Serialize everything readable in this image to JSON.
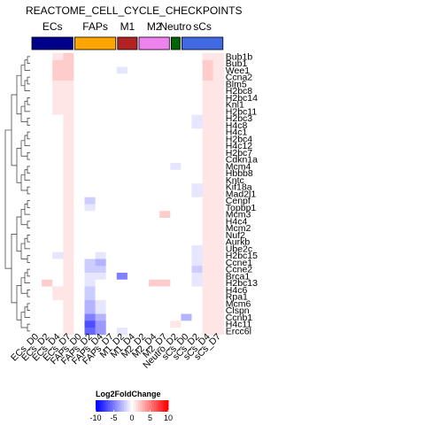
{
  "chart_data": {
    "type": "heatmap",
    "title": "REACTOME_CELL_CYCLE_CHECKPOINTS",
    "columns": [
      "ECs_D0",
      "ECs_D2",
      "ECs_D4",
      "ECs_D7",
      "FAPs_D0",
      "FAPs_D2",
      "FAPs_D4",
      "FAPs_D7",
      "M1_D2",
      "M1_D4",
      "M2_D2",
      "M2_D4",
      "M2_D7",
      "Neutro_D2",
      "sCs_D0",
      "sCs_D2",
      "sCs_D4",
      "sCs_D7"
    ],
    "column_groups": [
      {
        "name": "ECs",
        "color": "#00008B",
        "count": 4
      },
      {
        "name": "FAPs",
        "color": "#FFA500",
        "count": 4
      },
      {
        "name": "M1",
        "color": "#B22222",
        "count": 2
      },
      {
        "name": "M2",
        "color": "#EE82EE",
        "count": 3
      },
      {
        "name": "Neutro",
        "color": "#006400",
        "count": 1
      },
      {
        "name": "sCs",
        "color": "#4169E1",
        "count": 4
      }
    ],
    "rows": [
      "Bub1b",
      "Bub1",
      "Wee1",
      "Ccna2",
      "Blm5",
      "H2bc8",
      "H2bc14",
      "Knl1",
      "H2bc11",
      "H2bc3",
      "H4c8",
      "H4c1",
      "H2bc4",
      "H4c12",
      "H2bc7",
      "Cdkn1a",
      "Mcm4",
      "Hbbb8",
      "Kntc",
      "Kif18a",
      "Mad2l1",
      "Cenpf",
      "Topbp1",
      "Mcm3",
      "H4c4",
      "Mcm2",
      "Nuf2",
      "Aurkb",
      "Ube2c",
      "H2bc15",
      "Ccne1",
      "Ccne2",
      "Brca1",
      "H2bc13",
      "H4c6",
      "Rpa1",
      "Mcm6",
      "Clspn",
      "Ccnb1",
      "H4c11",
      "Ercc6l"
    ],
    "values": [
      [
        0,
        0,
        1,
        2,
        0,
        0,
        0,
        0,
        0,
        0,
        0,
        0,
        0,
        0,
        0,
        0,
        1,
        1
      ],
      [
        0,
        0,
        2,
        2,
        0,
        0,
        0,
        0,
        0,
        0,
        0,
        0,
        0,
        0,
        0,
        0,
        2,
        1
      ],
      [
        0,
        0,
        2,
        2,
        0,
        0,
        0,
        0,
        -1,
        0,
        0,
        0,
        0,
        0,
        0,
        0,
        2,
        1
      ],
      [
        0,
        0,
        2,
        2,
        0,
        0,
        0,
        0,
        0,
        0,
        0,
        0,
        0,
        0,
        0,
        0,
        2,
        1
      ],
      [
        0,
        0,
        1,
        1,
        0,
        0,
        0,
        0,
        0,
        0,
        0,
        0,
        0,
        0,
        0,
        0,
        1,
        1
      ],
      [
        0,
        0,
        1,
        1,
        0,
        0,
        0,
        0,
        0,
        0,
        0,
        0,
        0,
        0,
        0,
        0,
        1,
        1
      ],
      [
        0,
        0,
        1,
        1,
        0,
        0,
        0,
        0,
        0,
        0,
        0,
        0,
        0,
        0,
        0,
        0,
        1,
        1
      ],
      [
        0,
        0,
        1,
        1,
        0,
        0,
        0,
        0,
        0,
        0,
        0,
        0,
        0,
        0,
        0,
        0,
        1,
        1
      ],
      [
        0,
        0,
        1,
        1,
        0,
        0,
        0,
        0,
        0,
        0,
        0,
        0,
        0,
        0,
        0,
        0,
        1,
        1
      ],
      [
        0,
        0,
        0,
        1,
        0,
        0,
        0,
        0,
        0,
        0,
        0,
        0,
        0,
        0,
        0,
        -1,
        1,
        1
      ],
      [
        0,
        0,
        0,
        1,
        0,
        0,
        0,
        0,
        0,
        0,
        0,
        0,
        0,
        0,
        0,
        -1,
        1,
        1
      ],
      [
        0,
        0,
        0,
        1,
        0,
        0,
        0,
        0,
        0,
        0,
        0,
        0,
        0,
        0,
        0,
        0,
        1,
        1
      ],
      [
        0,
        0,
        0,
        1,
        0,
        0,
        0,
        0,
        0,
        0,
        0,
        0,
        0,
        0,
        0,
        0,
        1,
        1
      ],
      [
        0,
        0,
        0,
        1,
        0,
        0,
        0,
        0,
        0,
        0,
        0,
        0,
        0,
        0,
        0,
        0,
        1,
        1
      ],
      [
        0,
        0,
        0,
        1,
        0,
        0,
        0,
        0,
        0,
        0,
        0,
        0,
        0,
        0,
        0,
        0,
        1,
        1
      ],
      [
        0,
        0,
        0,
        1,
        0,
        0,
        0,
        0,
        0,
        0,
        0,
        0,
        0,
        0,
        0,
        0,
        1,
        1
      ],
      [
        0,
        0,
        0,
        1,
        0,
        0,
        0,
        0,
        0,
        0,
        0,
        0,
        0,
        -1,
        0,
        0,
        1,
        1
      ],
      [
        0,
        0,
        0,
        1,
        0,
        0,
        0,
        0,
        0,
        0,
        0,
        0,
        0,
        0,
        0,
        0,
        1,
        1
      ],
      [
        0,
        0,
        0,
        1,
        0,
        0,
        0,
        0,
        0,
        0,
        0,
        0,
        0,
        0,
        0,
        0,
        1,
        1
      ],
      [
        0,
        0,
        0,
        1,
        0,
        0,
        0,
        0,
        0,
        0,
        0,
        0,
        0,
        0,
        0,
        -1,
        1,
        1
      ],
      [
        0,
        0,
        0,
        1,
        0,
        0,
        0,
        0,
        0,
        0,
        0,
        0,
        0,
        0,
        0,
        -1,
        1,
        1
      ],
      [
        0,
        0,
        0,
        1,
        0,
        -2,
        0,
        0,
        0,
        0,
        0,
        0,
        0,
        0,
        0,
        0,
        1,
        1
      ],
      [
        0,
        0,
        0,
        1,
        0,
        -1,
        0,
        0,
        0,
        0,
        0,
        0,
        0,
        0,
        0,
        0,
        1,
        1
      ],
      [
        0,
        0,
        0,
        1,
        0,
        0,
        0,
        0,
        0,
        0,
        0,
        0,
        2,
        0,
        0,
        0,
        1,
        1
      ],
      [
        0,
        0,
        0,
        1,
        0,
        0,
        0,
        0,
        0,
        0,
        0,
        0,
        0,
        0,
        0,
        0,
        1,
        1
      ],
      [
        0,
        0,
        0,
        1,
        0,
        0,
        0,
        0,
        0,
        0,
        0,
        0,
        0,
        0,
        0,
        0,
        1,
        1
      ],
      [
        0,
        0,
        0,
        1,
        0,
        0,
        0,
        0,
        0,
        0,
        0,
        0,
        0,
        0,
        0,
        0,
        1,
        1
      ],
      [
        0,
        0,
        0,
        1,
        0,
        0,
        0,
        0,
        0,
        0,
        0,
        0,
        0,
        0,
        0,
        0,
        1,
        1
      ],
      [
        0,
        0,
        0,
        1,
        0,
        0,
        0,
        0,
        0,
        0,
        0,
        0,
        0,
        0,
        0,
        -1,
        1,
        1
      ],
      [
        0,
        0,
        -1,
        1,
        0,
        0,
        -1,
        0,
        0,
        0,
        0,
        0,
        0,
        0,
        0,
        -1,
        1,
        1
      ],
      [
        0,
        0,
        0,
        1,
        0,
        -2,
        -3,
        0,
        0,
        0,
        0,
        0,
        0,
        0,
        0,
        -1,
        1,
        1
      ],
      [
        0,
        0,
        0,
        1,
        0,
        -2,
        -2,
        0,
        0,
        0,
        0,
        0,
        0,
        0,
        0,
        -2,
        1,
        1
      ],
      [
        0,
        0,
        0,
        1,
        0,
        -1,
        -1,
        0,
        -5,
        0,
        0,
        0,
        0,
        0,
        0,
        -1,
        1,
        1
      ],
      [
        0,
        2,
        0,
        1,
        0,
        -1,
        0,
        0,
        0,
        0,
        0,
        2,
        2,
        0,
        0,
        -1,
        1,
        1
      ],
      [
        0,
        0,
        1,
        1,
        0,
        -2,
        0,
        0,
        0,
        0,
        0,
        0,
        0,
        0,
        0,
        0,
        1,
        1
      ],
      [
        0,
        0,
        1,
        1,
        0,
        -2,
        0,
        0,
        0,
        0,
        0,
        0,
        0,
        0,
        0,
        0,
        1,
        1
      ],
      [
        0,
        0,
        0,
        1,
        0,
        -3,
        -1,
        0,
        0,
        0,
        0,
        0,
        0,
        0,
        0,
        0,
        1,
        1
      ],
      [
        0,
        0,
        0,
        1,
        0,
        -3,
        -1,
        0,
        0,
        0,
        0,
        0,
        0,
        0,
        0,
        0,
        1,
        1
      ],
      [
        0,
        0,
        0,
        1,
        0,
        -5,
        -3,
        0,
        0,
        0,
        0,
        0,
        0,
        0,
        -3,
        0,
        1,
        1
      ],
      [
        0,
        0,
        0,
        1,
        0,
        -7,
        -4,
        0,
        0,
        0,
        0,
        0,
        0,
        1,
        0,
        0,
        1,
        1
      ],
      [
        0,
        0,
        0,
        1,
        0,
        -6,
        -4,
        0,
        -1,
        0,
        0,
        0,
        0,
        0,
        0,
        0,
        1,
        1
      ]
    ],
    "legend": {
      "title": "Log2FoldChange",
      "ticks": [
        -10,
        -5,
        0,
        5,
        10
      ],
      "colors": {
        "low": "#0000FF",
        "mid": "#FFFFFF",
        "high": "#FF0000"
      }
    }
  }
}
